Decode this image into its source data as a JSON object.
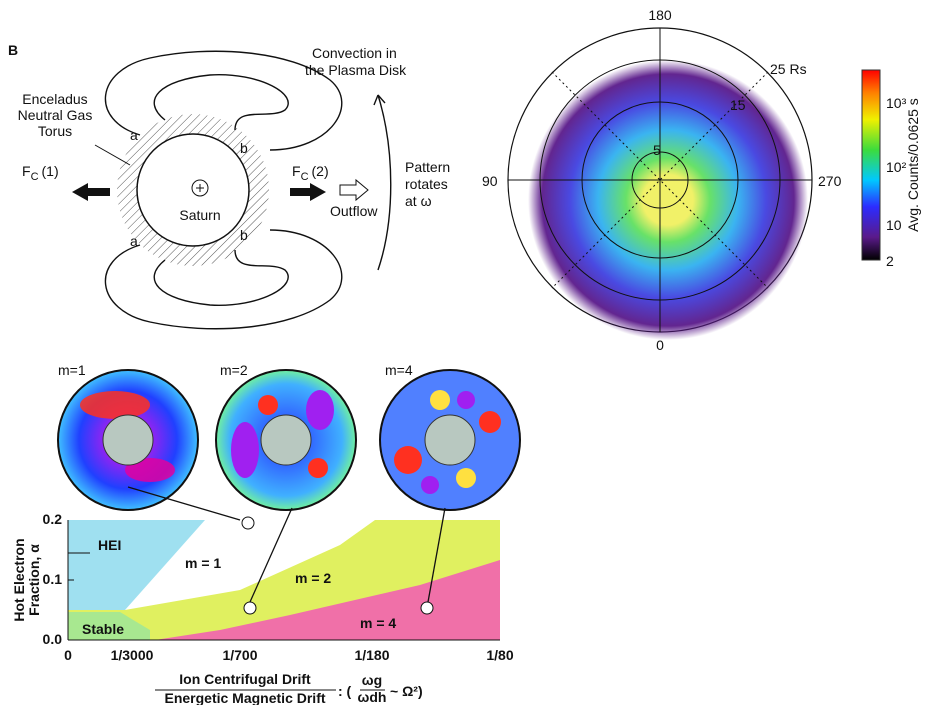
{
  "panel_b": {
    "letter": "B",
    "convection": [
      "Convection in",
      "the Plasma Disk"
    ],
    "torus": [
      "Enceladus",
      "Neutral Gas",
      "Torus"
    ],
    "labels_a": [
      "a",
      "a"
    ],
    "labels_b": [
      "b",
      "b"
    ],
    "force_left": {
      "base": "F",
      "sub": "C",
      "index": "(1)"
    },
    "force_right": {
      "base": "F",
      "sub": "C",
      "index": "(2)"
    },
    "planet": "Saturn",
    "outflow": "Outflow",
    "rotation": [
      "Pattern",
      "rotates",
      "at ω"
    ]
  },
  "polar_plot": {
    "angles": [
      "180",
      "90",
      "270",
      "0"
    ],
    "rings": [
      "25  Rs",
      "15",
      "5"
    ],
    "colorbar": {
      "label": "Avg. Counts/0.0625 s",
      "ticks": [
        "10³",
        "10²",
        "10",
        "2"
      ]
    }
  },
  "modes": [
    "m=1",
    "m=2",
    "m=4"
  ],
  "stability": {
    "y_label": [
      "Hot Electron",
      "Fraction, α"
    ],
    "y_ticks": [
      "0.0",
      "0.1",
      "0.2"
    ],
    "x_ticks": [
      "0",
      "1/3000",
      "1/700",
      "1/180",
      "1/80"
    ],
    "regions": [
      "HEI",
      "m = 1",
      "m = 2",
      "m = 4",
      "Stable"
    ],
    "x_label": {
      "numerator": "Ion Centrifugal Drift",
      "denominator": "Energetic Magnetic Drift",
      "formula": {
        "open": ": (",
        "num": "ωg",
        "den": "ωdh",
        "rest": "~ Ω²)"
      }
    }
  }
}
